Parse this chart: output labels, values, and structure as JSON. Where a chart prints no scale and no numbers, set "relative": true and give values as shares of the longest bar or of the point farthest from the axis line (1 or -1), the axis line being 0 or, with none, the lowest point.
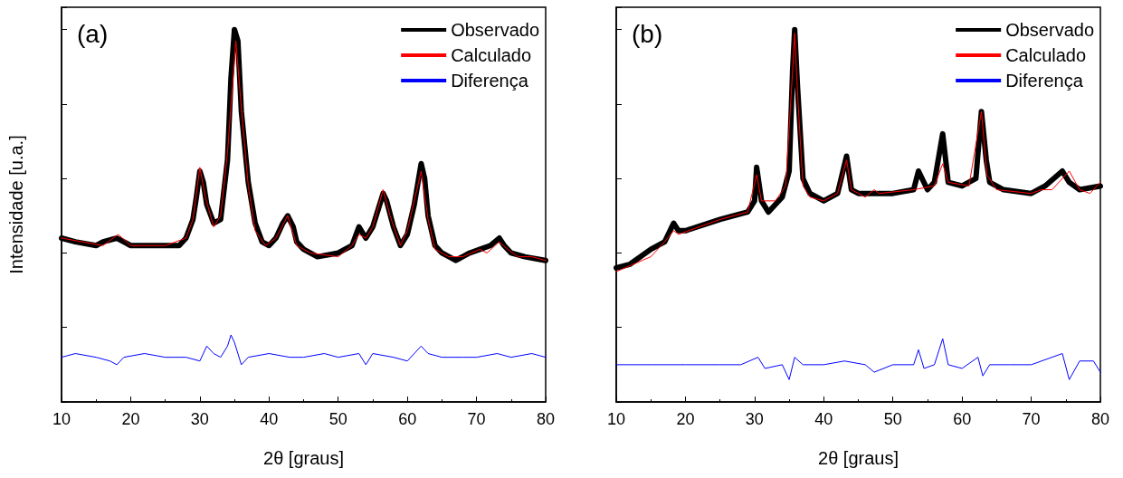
{
  "chart_data": [
    {
      "type": "line",
      "title": "(a)",
      "xlabel": "2θ [graus]",
      "ylabel": "Intensidade [u.a.]",
      "relative": true,
      "xlim": [
        10,
        80
      ],
      "xticks": [
        10,
        20,
        30,
        40,
        50,
        60,
        70,
        80
      ],
      "tick_labels": "x",
      "legend": "top right",
      "grid": false,
      "marker": "none",
      "series": [
        {
          "name": "Observado",
          "color": "#000000",
          "x": [
            10,
            12,
            15,
            16,
            18,
            19,
            20,
            22,
            25,
            27,
            28,
            29,
            29.5,
            30,
            30.5,
            31,
            32,
            33,
            34,
            34.5,
            35,
            35.5,
            36,
            37,
            38,
            39,
            40,
            41,
            42,
            42.7,
            43.5,
            44,
            45,
            47,
            50,
            52,
            53,
            54,
            55,
            56,
            56.5,
            57,
            58,
            59,
            60,
            61,
            62,
            62.5,
            63,
            64,
            65,
            67,
            69,
            70.5,
            72,
            73.3,
            74,
            75,
            77,
            80
          ],
          "values": [
            0.44,
            0.43,
            0.42,
            0.43,
            0.44,
            0.43,
            0.42,
            0.42,
            0.42,
            0.42,
            0.44,
            0.49,
            0.55,
            0.62,
            0.59,
            0.53,
            0.48,
            0.49,
            0.65,
            0.87,
            1.0,
            0.97,
            0.78,
            0.59,
            0.48,
            0.43,
            0.42,
            0.44,
            0.48,
            0.5,
            0.47,
            0.43,
            0.41,
            0.39,
            0.4,
            0.42,
            0.47,
            0.44,
            0.47,
            0.53,
            0.56,
            0.54,
            0.47,
            0.42,
            0.45,
            0.53,
            0.64,
            0.6,
            0.5,
            0.42,
            0.4,
            0.38,
            0.4,
            0.41,
            0.42,
            0.44,
            0.42,
            0.4,
            0.39,
            0.38
          ]
        },
        {
          "name": "Calculado",
          "color": "#ff0000",
          "x": [
            10,
            13,
            16,
            18.2,
            20,
            25,
            28,
            29,
            30,
            30.8,
            32,
            33,
            34,
            35.2,
            36,
            37,
            38,
            39.5,
            41,
            42.7,
            44,
            46,
            50,
            52,
            53,
            54,
            55,
            56.5,
            57.5,
            59,
            60,
            61,
            62,
            63,
            64,
            66,
            68,
            70.5,
            71.5,
            73.3,
            74.5,
            76,
            78,
            80
          ],
          "values": [
            0.44,
            0.43,
            0.42,
            0.45,
            0.42,
            0.42,
            0.44,
            0.49,
            0.63,
            0.55,
            0.47,
            0.5,
            0.67,
            0.97,
            0.79,
            0.58,
            0.46,
            0.42,
            0.44,
            0.5,
            0.42,
            0.4,
            0.39,
            0.42,
            0.45,
            0.44,
            0.47,
            0.57,
            0.5,
            0.42,
            0.46,
            0.54,
            0.62,
            0.49,
            0.41,
            0.39,
            0.39,
            0.41,
            0.4,
            0.43,
            0.41,
            0.39,
            0.39,
            0.38
          ]
        },
        {
          "name": "Diferença",
          "color": "#0000ff",
          "x": [
            10,
            12,
            15,
            17,
            18,
            19,
            22,
            25,
            28,
            30,
            31,
            32,
            33,
            34,
            34.5,
            35,
            36,
            37,
            40,
            43,
            45,
            48,
            50,
            53,
            54,
            55,
            58,
            60,
            62,
            63,
            65,
            68,
            70,
            73,
            75,
            78,
            80
          ],
          "values": [
            0.12,
            0.13,
            0.12,
            0.11,
            0.1,
            0.12,
            0.13,
            0.12,
            0.12,
            0.11,
            0.15,
            0.13,
            0.12,
            0.15,
            0.18,
            0.16,
            0.1,
            0.12,
            0.13,
            0.12,
            0.12,
            0.13,
            0.12,
            0.13,
            0.1,
            0.13,
            0.12,
            0.11,
            0.15,
            0.13,
            0.12,
            0.12,
            0.12,
            0.13,
            0.12,
            0.13,
            0.12
          ]
        }
      ]
    },
    {
      "type": "line",
      "title": "(b)",
      "xlabel": "2θ [graus]",
      "relative": true,
      "xlim": [
        10,
        80
      ],
      "xticks": [
        10,
        20,
        30,
        40,
        50,
        60,
        70,
        80
      ],
      "tick_labels": "x",
      "legend": "top right",
      "grid": false,
      "marker": "none",
      "series": [
        {
          "name": "Observado",
          "color": "#000000",
          "x": [
            10,
            12,
            15,
            17,
            18.3,
            19,
            20,
            25,
            29,
            30,
            30.3,
            31,
            32,
            34,
            35,
            35.5,
            35.8,
            36.2,
            37,
            38,
            40,
            42,
            43.3,
            44,
            45,
            50,
            53,
            53.7,
            55,
            56,
            57.2,
            58,
            60,
            62,
            62.8,
            63.5,
            64,
            66,
            70,
            72,
            74.5,
            75.5,
            77,
            80
          ],
          "values": [
            0.36,
            0.37,
            0.41,
            0.43,
            0.48,
            0.46,
            0.46,
            0.49,
            0.51,
            0.54,
            0.63,
            0.54,
            0.51,
            0.55,
            0.62,
            0.89,
            1.0,
            0.85,
            0.6,
            0.56,
            0.54,
            0.56,
            0.66,
            0.57,
            0.56,
            0.56,
            0.57,
            0.62,
            0.57,
            0.59,
            0.72,
            0.59,
            0.58,
            0.6,
            0.78,
            0.65,
            0.59,
            0.57,
            0.56,
            0.58,
            0.62,
            0.59,
            0.57,
            0.58
          ]
        },
        {
          "name": "Calculado",
          "color": "#ff0000",
          "x": [
            10,
            15,
            17,
            18.3,
            19,
            25,
            29,
            30.3,
            31,
            33,
            34.5,
            35.5,
            35.8,
            36.3,
            37,
            38,
            40,
            42,
            43.3,
            44,
            46,
            47.3,
            48,
            53,
            56,
            57.2,
            58,
            61,
            62.8,
            63.6,
            65,
            70,
            71.5,
            73,
            75.5,
            77,
            78.5,
            80
          ],
          "values": [
            0.35,
            0.39,
            0.43,
            0.46,
            0.45,
            0.49,
            0.51,
            0.61,
            0.54,
            0.54,
            0.58,
            0.89,
            0.99,
            0.8,
            0.58,
            0.55,
            0.54,
            0.56,
            0.65,
            0.57,
            0.55,
            0.57,
            0.56,
            0.57,
            0.58,
            0.64,
            0.59,
            0.58,
            0.78,
            0.61,
            0.57,
            0.56,
            0.57,
            0.57,
            0.62,
            0.57,
            0.56,
            0.59
          ]
        },
        {
          "name": "Diferença",
          "color": "#0000ff",
          "x": [
            10,
            15,
            20,
            25,
            28,
            30.5,
            31.5,
            34,
            35,
            35.8,
            37,
            40,
            43,
            46,
            47.3,
            50,
            53,
            53.7,
            54.5,
            56,
            57.2,
            58,
            60,
            62.3,
            63,
            64,
            67,
            70,
            74.5,
            75.5,
            77,
            79,
            80
          ],
          "values": [
            0.1,
            0.1,
            0.1,
            0.1,
            0.1,
            0.12,
            0.09,
            0.1,
            0.06,
            0.12,
            0.1,
            0.1,
            0.11,
            0.1,
            0.08,
            0.1,
            0.1,
            0.14,
            0.09,
            0.1,
            0.17,
            0.1,
            0.09,
            0.12,
            0.07,
            0.1,
            0.1,
            0.1,
            0.13,
            0.06,
            0.11,
            0.11,
            0.08
          ]
        }
      ]
    }
  ]
}
